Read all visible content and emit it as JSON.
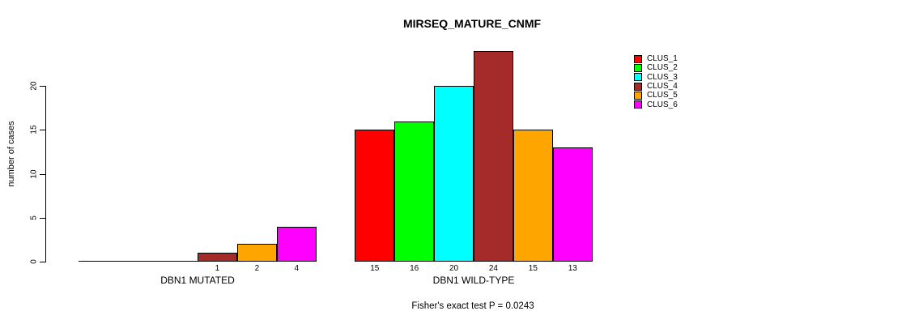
{
  "chart_data": {
    "type": "bar",
    "title": "MIRSEQ_MATURE_CNMF",
    "ylabel": "number of cases",
    "xlabel": "",
    "annotation": "Fisher's exact test P = 0.0243",
    "ylim": [
      0,
      24
    ],
    "yticks": [
      0,
      5,
      10,
      15,
      20
    ],
    "grid": false,
    "legend_position": "right",
    "legend": [
      {
        "label": "CLUS_1",
        "color": "#FF0000"
      },
      {
        "label": "CLUS_2",
        "color": "#00FF00"
      },
      {
        "label": "CLUS_3",
        "color": "#00FFFF"
      },
      {
        "label": "CLUS_4",
        "color": "#A52A2A"
      },
      {
        "label": "CLUS_5",
        "color": "#FFA500"
      },
      {
        "label": "CLUS_6",
        "color": "#FF00FF"
      }
    ],
    "series_colors": [
      "#FF0000",
      "#00FF00",
      "#00FFFF",
      "#A52A2A",
      "#FFA500",
      "#FF00FF"
    ],
    "groups": [
      {
        "label": "DBN1 MUTATED",
        "values": [
          0,
          0,
          0,
          1,
          2,
          4
        ],
        "bar_labels": [
          "",
          "",
          "",
          "1",
          "2",
          "4"
        ]
      },
      {
        "label": "DBN1 WILD-TYPE",
        "values": [
          15,
          16,
          20,
          24,
          15,
          13
        ],
        "bar_labels": [
          "15",
          "16",
          "20",
          "24",
          "15",
          "13"
        ]
      }
    ]
  }
}
